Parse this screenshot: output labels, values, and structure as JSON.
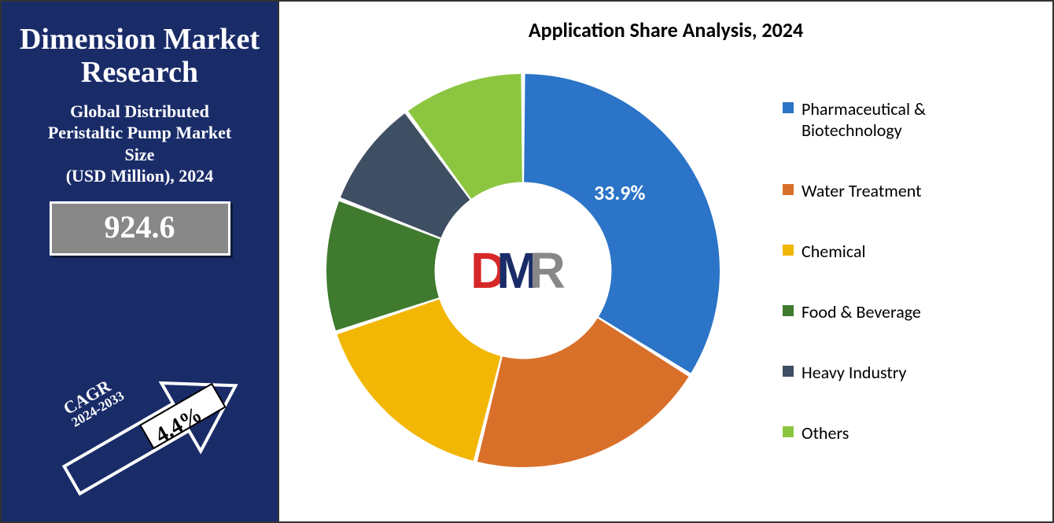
{
  "left": {
    "brand": "Dimension Market Research",
    "subtitle_lines": {
      "l1": "Global Distributed",
      "l2": "Peristaltic Pump Market",
      "l3": "Size",
      "l4": "(USD Million), 2024"
    },
    "value": "924.6",
    "cagr_label": "CAGR",
    "cagr_years": "2024-2033",
    "cagr_value": "4.4%",
    "panel_bg": "#1a2c68",
    "value_box_bg": "#888888"
  },
  "chart": {
    "title": "Application Share Analysis, 2024",
    "type": "donut",
    "inner_radius_pct": 45,
    "background_color": "#ffffff",
    "highlight_label": "33.9%",
    "segments": [
      {
        "name": "Pharmaceutical & Biotechnology",
        "value": 33.9,
        "color": "#2b74c7"
      },
      {
        "name": "Water Treatment",
        "value": 20.0,
        "color": "#d9702a"
      },
      {
        "name": "Chemical",
        "value": 16.0,
        "color": "#f2b705"
      },
      {
        "name": "Food & Beverage",
        "value": 11.0,
        "color": "#3f7a2e"
      },
      {
        "name": "Heavy Industry",
        "value": 9.0,
        "color": "#3f4f63"
      },
      {
        "name": "Others",
        "value": 10.1,
        "color": "#8cc640"
      }
    ],
    "legend_fontsize": 22,
    "title_fontsize": 26
  },
  "logo": {
    "d": "D",
    "m": "M",
    "r": "R"
  }
}
